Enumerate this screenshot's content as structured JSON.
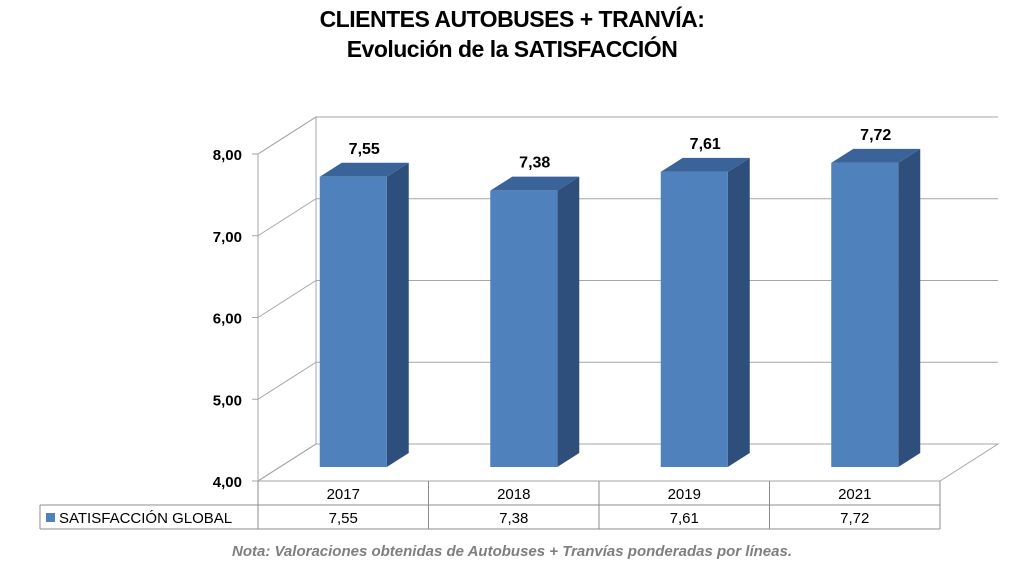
{
  "title_line1": "CLIENTES AUTOBUSES + TRANVÍA:",
  "title_line2": "Evolución de la SATISFACCIÓN",
  "note": "Nota: Valoraciones obtenidas de Autobuses + Tranvías ponderadas por líneas.",
  "chart_data": {
    "type": "bar",
    "categories": [
      "2017",
      "2018",
      "2019",
      "2021"
    ],
    "series": [
      {
        "name": "SATISFACCIÓN GLOBAL",
        "values": [
          7.55,
          7.38,
          7.61,
          7.72
        ]
      }
    ],
    "data_labels": [
      "7,55",
      "7,38",
      "7,61",
      "7,72"
    ],
    "table_values": [
      "7,55",
      "7,38",
      "7,61",
      "7,72"
    ],
    "ylim": [
      4,
      8
    ],
    "yticks": [
      "4,00",
      "5,00",
      "6,00",
      "7,00",
      "8,00"
    ],
    "grid": true,
    "legend": "data-table",
    "three_d": true,
    "colors": {
      "bar_front": "#4f81bd",
      "bar_side": "#2e4f7c",
      "bar_top": "#3a639a",
      "grid": "#a6a6a6"
    }
  }
}
